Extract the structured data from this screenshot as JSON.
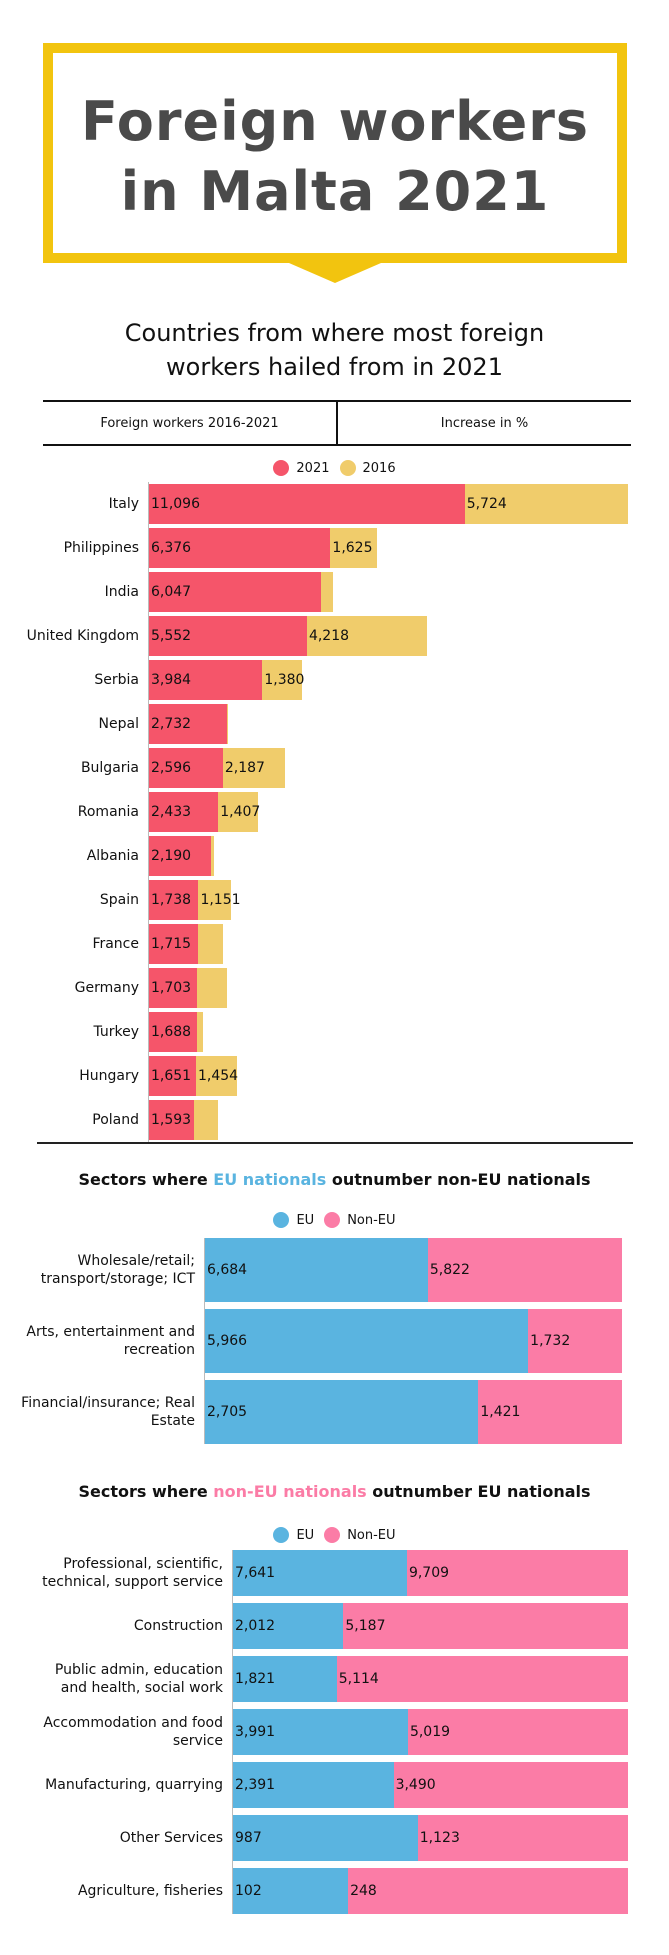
{
  "title": "Foreign workers in Malta 2021",
  "heading": "Countries from where most foreign workers hailed from in 2021",
  "tabs": [
    "Foreign workers 2016-2021",
    "Increase in %"
  ],
  "colors": {
    "y2021": "#f5556a",
    "y2016": "#f0cc6b",
    "eu": "#5ab4e0",
    "non_eu": "#fb7ca6",
    "title_border": "#f2c40f"
  },
  "chart_data": [
    {
      "type": "bar",
      "orientation": "horizontal",
      "stacked": true,
      "legend_position": "top",
      "categories": [
        "Italy",
        "Philippines",
        "India",
        "United Kingdom",
        "Serbia",
        "Nepal",
        "Bulgaria",
        "Romania",
        "Albania",
        "Spain",
        "France",
        "Germany",
        "Turkey",
        "Hungary",
        "Poland"
      ],
      "series": [
        {
          "name": "2021",
          "values": [
            11096,
            6376,
            6047,
            5552,
            3984,
            2732,
            2596,
            2433,
            2190,
            1738,
            1715,
            1703,
            1688,
            1651,
            1593
          ],
          "labels": [
            "11,096",
            "6,376",
            "6,047",
            "5,552",
            "3,984",
            "2,732",
            "2,596",
            "2,433",
            "2,190",
            "1,738",
            "1,715",
            "1,703",
            "1,688",
            "1,651",
            "1,593"
          ]
        },
        {
          "name": "2016",
          "values": [
            5724,
            1625,
            420,
            4218,
            1380,
            60,
            2187,
            1407,
            90,
            1151,
            900,
            1050,
            200,
            1454,
            820
          ],
          "labels": [
            "5,724",
            "1,625",
            "",
            "4,218",
            "1,380",
            "",
            "2,187",
            "1,407",
            "",
            "1,151",
            "",
            "",
            "",
            "1,454",
            ""
          ]
        }
      ],
      "xlim": [
        0,
        16800
      ]
    },
    {
      "type": "bar",
      "orientation": "horizontal",
      "stacked": true,
      "title_parts": [
        "Sectors where ",
        "EU nationals",
        " outnumber non-EU nationals"
      ],
      "legend_position": "top",
      "categories": [
        "Wholesale/retail; transport/storage; ICT",
        "Arts, entertainment and recreation",
        "Financial/insurance; Real Estate"
      ],
      "series": [
        {
          "name": "EU",
          "values": [
            6684,
            5966,
            2705
          ],
          "labels": [
            "6,684",
            "5,966",
            "2,705"
          ]
        },
        {
          "name": "Non-EU",
          "values": [
            5822,
            1732,
            1421
          ],
          "labels": [
            "5,822",
            "1,732",
            "1,421"
          ]
        }
      ],
      "normalized": true
    },
    {
      "type": "bar",
      "orientation": "horizontal",
      "stacked": true,
      "title_parts": [
        "Sectors where ",
        "non-EU nationals",
        " outnumber EU nationals"
      ],
      "legend_position": "top",
      "categories": [
        "Professional, scientific, technical, support service",
        "Construction",
        "Public admin, education and health, social work",
        "Accommodation and food service",
        "Manufacturing, quarrying",
        "Other Services",
        "Agriculture, fisheries"
      ],
      "series": [
        {
          "name": "EU",
          "values": [
            7641,
            2012,
            1821,
            3991,
            2391,
            987,
            102
          ],
          "labels": [
            "7,641",
            "2,012",
            "1,821",
            "3,991",
            "2,391",
            "987",
            "102"
          ]
        },
        {
          "name": "Non-EU",
          "values": [
            9709,
            5187,
            5114,
            5019,
            3490,
            1123,
            248
          ],
          "labels": [
            "9,709",
            "5,187",
            "5,114",
            "5,019",
            "3,490",
            "1,123",
            "248"
          ]
        }
      ],
      "normalized": true
    }
  ]
}
